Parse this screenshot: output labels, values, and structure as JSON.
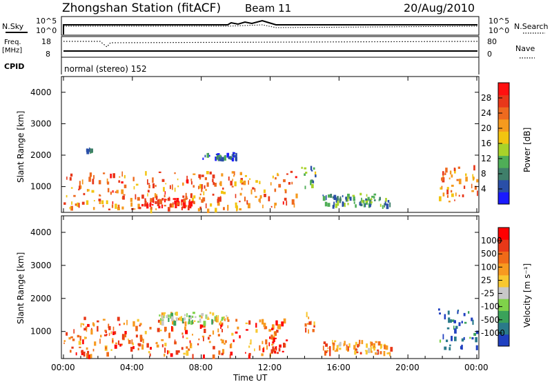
{
  "header": {
    "title": "Zhongshan Station (fitACF)",
    "beam": "Beam 11",
    "date": "20/Aug/2010"
  },
  "strip_panels": {
    "nsky_label": "N.Sky",
    "nsky_ticks": [
      "10^5",
      "10^0"
    ],
    "nsearch_label": "N.Search",
    "nsearch_ticks": [
      "10^5",
      "10^0"
    ],
    "freq_label_1": "Freq.",
    "freq_label_2": "[MHz]",
    "freq_ticks": [
      "18",
      "8"
    ],
    "nave_label": "Nave",
    "nave_ticks": [
      "80",
      "0"
    ],
    "cpid_label": "CPID",
    "cpid_text": "normal (stereo) 152"
  },
  "chart_data": [
    {
      "type": "heatmap",
      "name": "power",
      "ylabel": "Slant Range [km]",
      "yticks": [
        "4000",
        "3000",
        "2000",
        "1000"
      ],
      "ylim": [
        180,
        4500
      ],
      "colorbar_label": "Power [dB]",
      "colorbar_ticks": [
        "28",
        "24",
        "20",
        "16",
        "12",
        "8",
        "4"
      ],
      "colorbar_colors": [
        "#1a1aff",
        "#2a4fa8",
        "#3f7f6a",
        "#4fae57",
        "#a8d22a",
        "#f2c410",
        "#f59a1e",
        "#ee6a1f",
        "#e8381a",
        "#ff1010"
      ],
      "patches": [
        {
          "t0": 0.0,
          "t1": 13.5,
          "r0": 300,
          "r1": 1500,
          "v": 0.72
        },
        {
          "t0": 1.2,
          "t1": 1.6,
          "r0": 2150,
          "r1": 2300,
          "v": 0.25
        },
        {
          "t0": 4.5,
          "t1": 7.5,
          "r0": 350,
          "r1": 650,
          "v": 0.92
        },
        {
          "t0": 8.0,
          "t1": 10.0,
          "r0": 1900,
          "r1": 2100,
          "v": 0.2
        },
        {
          "t0": 13.8,
          "t1": 14.6,
          "r0": 1000,
          "r1": 1750,
          "v": 0.35
        },
        {
          "t0": 15.0,
          "t1": 19.0,
          "r0": 400,
          "r1": 800,
          "v": 0.3
        },
        {
          "t0": 21.7,
          "t1": 24.0,
          "r0": 500,
          "r1": 1700,
          "v": 0.7
        }
      ]
    },
    {
      "type": "heatmap",
      "name": "velocity",
      "ylabel": "Slant Range [km]",
      "yticks": [
        "4000",
        "3000",
        "2000",
        "1000"
      ],
      "ylim": [
        180,
        4500
      ],
      "xlabel": "Time UT",
      "xticks": [
        "00:00",
        "04:00",
        "08:00",
        "12:00",
        "16:00",
        "20:00",
        "00:00"
      ],
      "colorbar_label": "Velocity [m s⁻¹]",
      "colorbar_ticks": [
        "1000",
        "500",
        "100",
        "25",
        "-25",
        "-100",
        "-500",
        "-1000"
      ],
      "colorbar_colors": [
        "#2040c0",
        "#2a7a8a",
        "#3aa25a",
        "#7fd24a",
        "#c8c8c8",
        "#f8c830",
        "#f79a20",
        "#f06a18",
        "#e83818",
        "#ff0000"
      ],
      "patches": [
        {
          "t0": 0.0,
          "t1": 12.5,
          "r0": 300,
          "r1": 1450,
          "v": 0.75
        },
        {
          "t0": 5.5,
          "t1": 9.5,
          "r0": 1300,
          "r1": 1600,
          "v": 0.45
        },
        {
          "t0": 11.5,
          "t1": 13.0,
          "r0": 400,
          "r1": 1400,
          "v": 0.85
        },
        {
          "t0": 14.0,
          "t1": 14.6,
          "r0": 1000,
          "r1": 1700,
          "v": 0.7
        },
        {
          "t0": 15.0,
          "t1": 19.0,
          "r0": 350,
          "r1": 750,
          "v": 0.68
        },
        {
          "t0": 21.7,
          "t1": 24.0,
          "r0": 500,
          "r1": 1700,
          "v": 0.12
        }
      ]
    }
  ]
}
